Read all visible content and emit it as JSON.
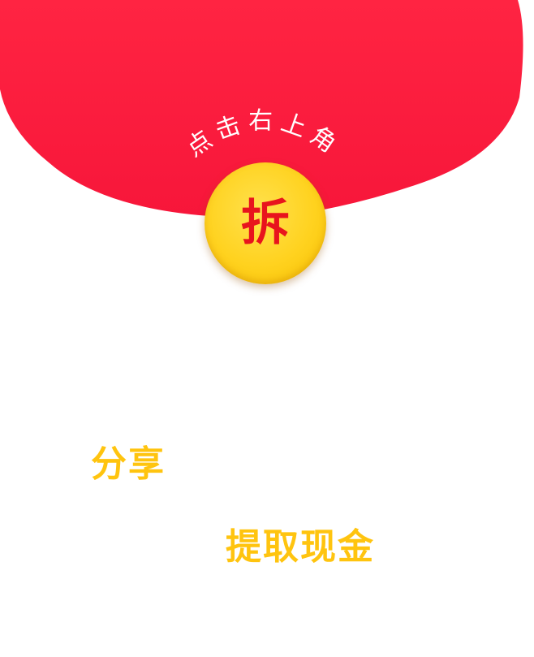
{
  "envelope": {
    "hint_text": "点击右上角",
    "open_label": "拆"
  },
  "content": {
    "share_text": "分享",
    "withdraw_text": "提取现金"
  },
  "colors": {
    "envelope_red": "#ff1c3d",
    "coin_yellow": "#ffd21f",
    "accent_red": "#e8141d",
    "text_gold": "#ffc40f"
  }
}
